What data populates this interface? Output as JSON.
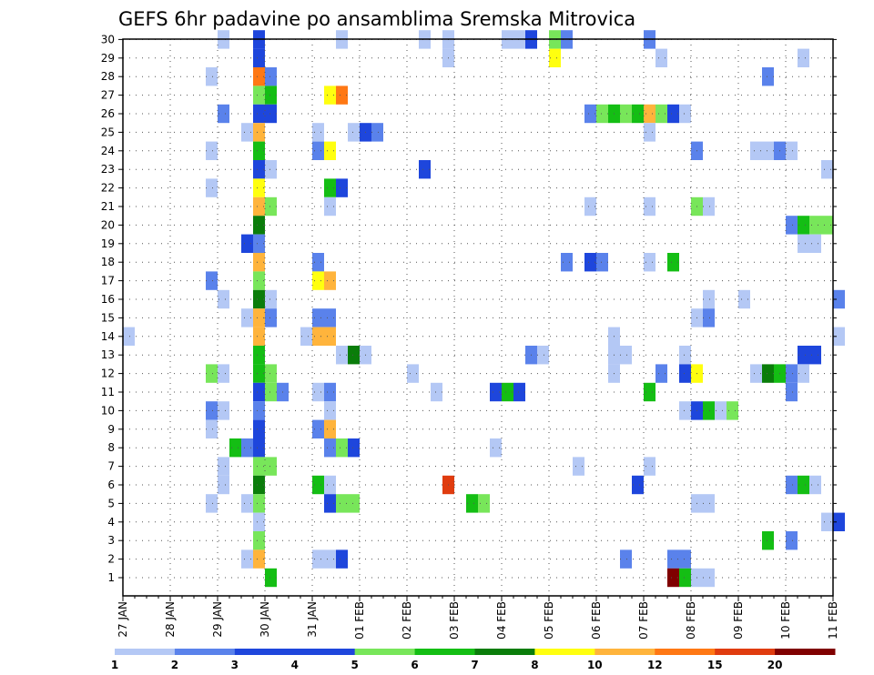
{
  "chart_data": {
    "type": "heatmap",
    "title": "GEFS 6hr padavine po ansamblima Sremska Mitrovica",
    "xlabel": "",
    "ylabel": "",
    "x_ticks": [
      "27 JAN",
      "28 JAN",
      "29 JAN",
      "30 JAN",
      "31 JAN",
      "01 FEB",
      "02 FEB",
      "03 FEB",
      "04 FEB",
      "05 FEB",
      "06 FEB",
      "07 FEB",
      "08 FEB",
      "09 FEB",
      "10 FEB",
      "11 FEB"
    ],
    "y_ticks": [
      "1",
      "2",
      "3",
      "4",
      "5",
      "6",
      "7",
      "8",
      "9",
      "10",
      "11",
      "12",
      "13",
      "14",
      "15",
      "16",
      "17",
      "18",
      "19",
      "20",
      "21",
      "22",
      "23",
      "24",
      "25",
      "26",
      "27",
      "28",
      "29",
      "30"
    ],
    "legend_labels": [
      "1",
      "2",
      "3",
      "4",
      "5",
      "6",
      "7",
      "8",
      "10",
      "12",
      "15",
      "20"
    ],
    "legend_colors": [
      "#b4c8f5",
      "#5a82eb",
      "#1e46dc",
      "#1e46dc",
      "#78e65a",
      "#14be14",
      "#0a7d0a",
      "#ffff0f",
      "#ffb43c",
      "#ff7814",
      "#e03c0f",
      "#800000"
    ],
    "colors": {
      "c1": "#b4c8f5",
      "c2": "#5a82eb",
      "c3": "#1e46dc",
      "c4": "#78e65a",
      "c5": "#14be14",
      "c6": "#0a7d0a",
      "c7": "#ffff0f",
      "c8": "#ffb43c",
      "c9": "#ff7814",
      "c10": "#e03c0f",
      "c11": "#800000"
    },
    "grid": true,
    "notes": "cells: [member, time_index (6h steps from 27 JAN 00z), color_class]",
    "cells": [
      [
        30,
        8,
        "c1"
      ],
      [
        30,
        11,
        "c3"
      ],
      [
        30,
        18,
        "c1"
      ],
      [
        30,
        25,
        "c1"
      ],
      [
        30,
        27,
        "c1"
      ],
      [
        30,
        32,
        "c1"
      ],
      [
        30,
        33,
        "c1"
      ],
      [
        30,
        34,
        "c3"
      ],
      [
        30,
        36,
        "c4"
      ],
      [
        30,
        37,
        "c2"
      ],
      [
        30,
        44,
        "c2"
      ],
      [
        29,
        11,
        "c3"
      ],
      [
        29,
        27,
        "c1"
      ],
      [
        29,
        36,
        "c7"
      ],
      [
        29,
        45,
        "c1"
      ],
      [
        29,
        57,
        "c1"
      ],
      [
        28,
        7,
        "c1"
      ],
      [
        28,
        11,
        "c9"
      ],
      [
        28,
        12,
        "c2"
      ],
      [
        28,
        54,
        "c2"
      ],
      [
        27,
        11,
        "c4"
      ],
      [
        27,
        12,
        "c5"
      ],
      [
        27,
        17,
        "c7"
      ],
      [
        27,
        18,
        "c9"
      ],
      [
        26,
        8,
        "c2"
      ],
      [
        26,
        11,
        "c3"
      ],
      [
        26,
        12,
        "c3"
      ],
      [
        26,
        39,
        "c2"
      ],
      [
        26,
        40,
        "c4"
      ],
      [
        26,
        41,
        "c5"
      ],
      [
        26,
        42,
        "c4"
      ],
      [
        26,
        43,
        "c5"
      ],
      [
        26,
        44,
        "c8"
      ],
      [
        26,
        45,
        "c4"
      ],
      [
        26,
        46,
        "c3"
      ],
      [
        26,
        47,
        "c1"
      ],
      [
        25,
        10,
        "c1"
      ],
      [
        25,
        11,
        "c8"
      ],
      [
        25,
        16,
        "c1"
      ],
      [
        25,
        19,
        "c1"
      ],
      [
        25,
        20,
        "c3"
      ],
      [
        25,
        21,
        "c2"
      ],
      [
        25,
        44,
        "c1"
      ],
      [
        24,
        7,
        "c1"
      ],
      [
        24,
        11,
        "c5"
      ],
      [
        24,
        16,
        "c2"
      ],
      [
        24,
        17,
        "c7"
      ],
      [
        24,
        48,
        "c2"
      ],
      [
        24,
        53,
        "c1"
      ],
      [
        24,
        54,
        "c1"
      ],
      [
        24,
        55,
        "c2"
      ],
      [
        24,
        56,
        "c1"
      ],
      [
        23,
        11,
        "c3"
      ],
      [
        23,
        12,
        "c1"
      ],
      [
        23,
        25,
        "c3"
      ],
      [
        23,
        59,
        "c1"
      ],
      [
        22,
        7,
        "c1"
      ],
      [
        22,
        11,
        "c7"
      ],
      [
        22,
        17,
        "c5"
      ],
      [
        22,
        18,
        "c3"
      ],
      [
        21,
        11,
        "c8"
      ],
      [
        21,
        12,
        "c4"
      ],
      [
        21,
        17,
        "c1"
      ],
      [
        21,
        39,
        "c1"
      ],
      [
        21,
        44,
        "c1"
      ],
      [
        21,
        48,
        "c4"
      ],
      [
        21,
        49,
        "c1"
      ],
      [
        20,
        11,
        "c6"
      ],
      [
        20,
        56,
        "c2"
      ],
      [
        20,
        57,
        "c5"
      ],
      [
        20,
        58,
        "c4"
      ],
      [
        20,
        59,
        "c4"
      ],
      [
        19,
        10,
        "c3"
      ],
      [
        19,
        11,
        "c2"
      ],
      [
        19,
        57,
        "c1"
      ],
      [
        19,
        58,
        "c1"
      ],
      [
        18,
        11,
        "c8"
      ],
      [
        18,
        16,
        "c2"
      ],
      [
        18,
        37,
        "c2"
      ],
      [
        18,
        39,
        "c3"
      ],
      [
        18,
        40,
        "c2"
      ],
      [
        18,
        44,
        "c1"
      ],
      [
        18,
        46,
        "c5"
      ],
      [
        17,
        7,
        "c2"
      ],
      [
        17,
        11,
        "c4"
      ],
      [
        17,
        16,
        "c7"
      ],
      [
        17,
        17,
        "c8"
      ],
      [
        16,
        8,
        "c1"
      ],
      [
        16,
        11,
        "c6"
      ],
      [
        16,
        12,
        "c1"
      ],
      [
        16,
        49,
        "c1"
      ],
      [
        16,
        52,
        "c1"
      ],
      [
        16,
        60,
        "c2"
      ],
      [
        15,
        10,
        "c1"
      ],
      [
        15,
        11,
        "c8"
      ],
      [
        15,
        12,
        "c2"
      ],
      [
        15,
        16,
        "c2"
      ],
      [
        15,
        17,
        "c2"
      ],
      [
        15,
        48,
        "c1"
      ],
      [
        15,
        49,
        "c2"
      ],
      [
        14,
        0,
        "c1"
      ],
      [
        14,
        11,
        "c8"
      ],
      [
        14,
        15,
        "c1"
      ],
      [
        14,
        16,
        "c8"
      ],
      [
        14,
        17,
        "c8"
      ],
      [
        14,
        41,
        "c1"
      ],
      [
        14,
        60,
        "c1"
      ],
      [
        13,
        11,
        "c5"
      ],
      [
        13,
        18,
        "c1"
      ],
      [
        13,
        19,
        "c6"
      ],
      [
        13,
        20,
        "c1"
      ],
      [
        13,
        34,
        "c2"
      ],
      [
        13,
        35,
        "c1"
      ],
      [
        13,
        41,
        "c1"
      ],
      [
        13,
        42,
        "c1"
      ],
      [
        13,
        47,
        "c1"
      ],
      [
        13,
        57,
        "c3"
      ],
      [
        13,
        58,
        "c3"
      ],
      [
        12,
        7,
        "c4"
      ],
      [
        12,
        8,
        "c1"
      ],
      [
        12,
        11,
        "c5"
      ],
      [
        12,
        12,
        "c4"
      ],
      [
        12,
        24,
        "c1"
      ],
      [
        12,
        41,
        "c1"
      ],
      [
        12,
        45,
        "c2"
      ],
      [
        12,
        47,
        "c3"
      ],
      [
        12,
        48,
        "c7"
      ],
      [
        12,
        53,
        "c1"
      ],
      [
        12,
        54,
        "c6"
      ],
      [
        12,
        55,
        "c5"
      ],
      [
        12,
        56,
        "c2"
      ],
      [
        12,
        57,
        "c1"
      ],
      [
        11,
        11,
        "c3"
      ],
      [
        11,
        12,
        "c4"
      ],
      [
        11,
        13,
        "c2"
      ],
      [
        11,
        16,
        "c1"
      ],
      [
        11,
        17,
        "c2"
      ],
      [
        11,
        26,
        "c1"
      ],
      [
        11,
        31,
        "c3"
      ],
      [
        11,
        32,
        "c5"
      ],
      [
        11,
        33,
        "c3"
      ],
      [
        11,
        44,
        "c5"
      ],
      [
        11,
        56,
        "c2"
      ],
      [
        10,
        7,
        "c2"
      ],
      [
        10,
        8,
        "c1"
      ],
      [
        10,
        11,
        "c2"
      ],
      [
        10,
        17,
        "c1"
      ],
      [
        10,
        47,
        "c1"
      ],
      [
        10,
        48,
        "c3"
      ],
      [
        10,
        49,
        "c5"
      ],
      [
        10,
        50,
        "c1"
      ],
      [
        10,
        51,
        "c4"
      ],
      [
        9,
        7,
        "c1"
      ],
      [
        9,
        11,
        "c3"
      ],
      [
        9,
        16,
        "c2"
      ],
      [
        9,
        17,
        "c8"
      ],
      [
        8,
        9,
        "c5"
      ],
      [
        8,
        10,
        "c2"
      ],
      [
        8,
        11,
        "c3"
      ],
      [
        8,
        17,
        "c2"
      ],
      [
        8,
        18,
        "c4"
      ],
      [
        8,
        19,
        "c3"
      ],
      [
        8,
        31,
        "c1"
      ],
      [
        7,
        8,
        "c1"
      ],
      [
        7,
        11,
        "c4"
      ],
      [
        7,
        12,
        "c4"
      ],
      [
        7,
        38,
        "c1"
      ],
      [
        7,
        44,
        "c1"
      ],
      [
        6,
        8,
        "c1"
      ],
      [
        6,
        11,
        "c6"
      ],
      [
        6,
        16,
        "c5"
      ],
      [
        6,
        17,
        "c1"
      ],
      [
        6,
        27,
        "c10"
      ],
      [
        6,
        43,
        "c3"
      ],
      [
        6,
        56,
        "c2"
      ],
      [
        6,
        57,
        "c5"
      ],
      [
        6,
        58,
        "c1"
      ],
      [
        5,
        7,
        "c1"
      ],
      [
        5,
        10,
        "c1"
      ],
      [
        5,
        11,
        "c4"
      ],
      [
        5,
        17,
        "c3"
      ],
      [
        5,
        18,
        "c4"
      ],
      [
        5,
        19,
        "c4"
      ],
      [
        5,
        29,
        "c5"
      ],
      [
        5,
        30,
        "c4"
      ],
      [
        5,
        48,
        "c1"
      ],
      [
        5,
        49,
        "c1"
      ],
      [
        4,
        11,
        "c1"
      ],
      [
        4,
        59,
        "c1"
      ],
      [
        4,
        60,
        "c3"
      ],
      [
        3,
        11,
        "c4"
      ],
      [
        3,
        54,
        "c5"
      ],
      [
        3,
        56,
        "c2"
      ],
      [
        2,
        10,
        "c1"
      ],
      [
        2,
        11,
        "c8"
      ],
      [
        2,
        16,
        "c1"
      ],
      [
        2,
        17,
        "c1"
      ],
      [
        2,
        18,
        "c3"
      ],
      [
        2,
        42,
        "c2"
      ],
      [
        2,
        46,
        "c2"
      ],
      [
        2,
        47,
        "c2"
      ],
      [
        1,
        12,
        "c5"
      ],
      [
        1,
        46,
        "c11"
      ],
      [
        1,
        47,
        "c5"
      ],
      [
        1,
        48,
        "c1"
      ],
      [
        1,
        49,
        "c1"
      ]
    ]
  }
}
